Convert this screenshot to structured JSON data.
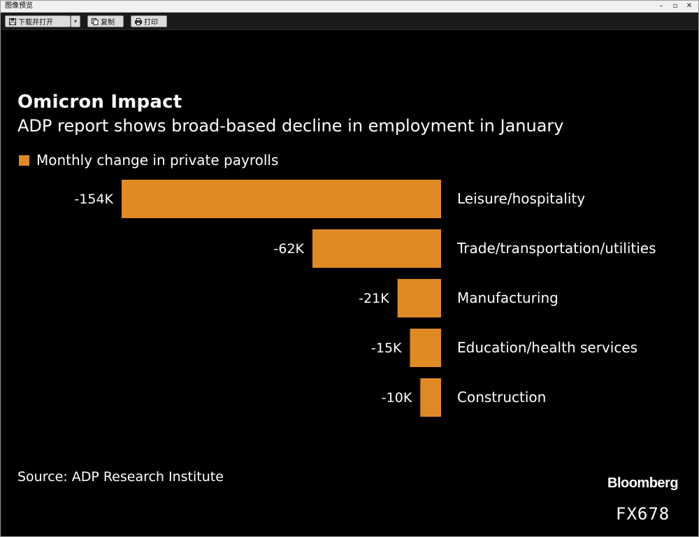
{
  "window": {
    "title": "图像预览",
    "controls": [
      "–",
      "▫",
      "✕"
    ]
  },
  "toolbar": {
    "download_open_label": "下载并打开",
    "copy_label": "复制",
    "print_label": "打印"
  },
  "chart_data": {
    "type": "bar",
    "orientation": "horizontal",
    "title": "Omicron Impact",
    "subtitle": "ADP report shows broad-based decline in employment in January",
    "legend": "Monthly change in private payrolls",
    "legend_placement": "top-left",
    "grid": false,
    "bar_color": "#e08a24",
    "categories": [
      "Leisure/hospitality",
      "Trade/transportation/utilities",
      "Manufacturing",
      "Education/health services",
      "Construction"
    ],
    "values": [
      -154,
      -62,
      -21,
      -15,
      -10
    ],
    "value_labels": [
      "-154K",
      "-62K",
      "-21K",
      "-15K",
      "-10K"
    ],
    "units": "thousands of jobs",
    "xlim": [
      -154,
      0
    ],
    "source": "Source: ADP Research Institute"
  },
  "branding": {
    "publisher": "Bloomberg",
    "code": "FX678"
  }
}
